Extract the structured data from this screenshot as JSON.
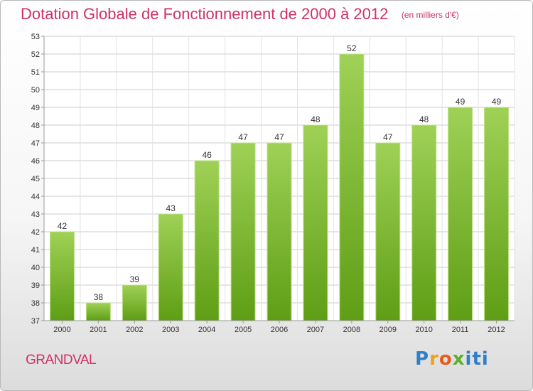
{
  "header": {
    "title": "Dotation Globale de Fonctionnement de 2000 à 2012",
    "subtitle": "(en milliers d'€)"
  },
  "footer": {
    "commune": "GRANDVAL",
    "brand": "Proxiti"
  },
  "colors": {
    "title": "#d0306a",
    "bar_light": "#9fd156",
    "bar_dark": "#5e9e15",
    "grid": "#cccccc",
    "axis_text": "#333333"
  },
  "chart_data": {
    "type": "bar",
    "title": "Dotation Globale de Fonctionnement de 2000 à 2012",
    "subtitle": "(en milliers d'€)",
    "xlabel": "",
    "ylabel": "",
    "categories": [
      "2000",
      "2001",
      "2002",
      "2003",
      "2004",
      "2005",
      "2006",
      "2007",
      "2008",
      "2009",
      "2010",
      "2011",
      "2012"
    ],
    "values": [
      42,
      38,
      39,
      43,
      46,
      47,
      47,
      48,
      52,
      47,
      48,
      49,
      49
    ],
    "ylim": [
      37,
      53
    ],
    "yticks": [
      37,
      38,
      39,
      40,
      41,
      42,
      43,
      44,
      45,
      46,
      47,
      48,
      49,
      50,
      51,
      52,
      53
    ],
    "grid": true,
    "data_labels": true
  }
}
